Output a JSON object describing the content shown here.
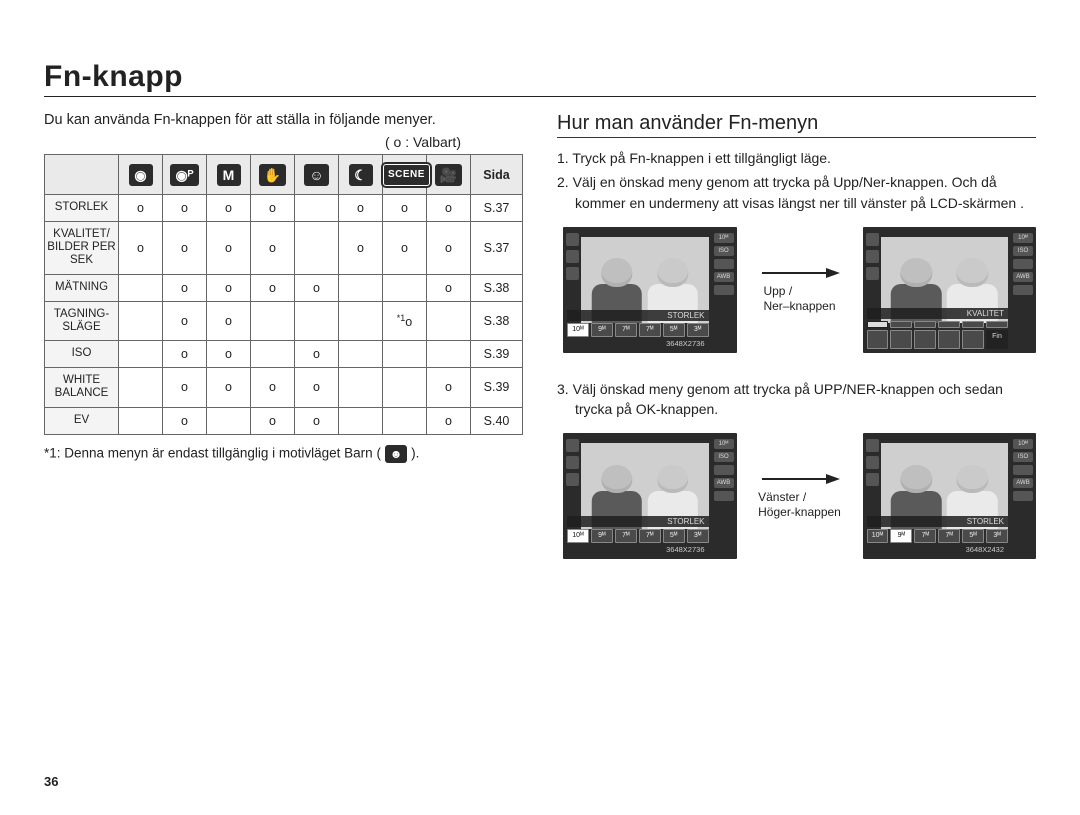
{
  "page_title": "Fn-knapp",
  "page_number": "36",
  "left": {
    "intro": "Du kan använda Fn-knappen för att ställa in följande menyer.",
    "valbart": "( o : Valbart)",
    "table": {
      "last_col_header": "Sida",
      "mode_icon_labels": [
        "camera-auto",
        "camera-p",
        "M",
        "hand-dis",
        "dual-face",
        "night",
        "SCENE",
        "video"
      ],
      "rows": [
        {
          "label": "STORLEK",
          "cells": [
            "o",
            "o",
            "o",
            "o",
            "",
            "o",
            "o",
            "o"
          ],
          "page": "S.37"
        },
        {
          "label": "KVALITET/\nBILDER PER\nSEK",
          "cells": [
            "o",
            "o",
            "o",
            "o",
            "",
            "o",
            "o",
            "o"
          ],
          "page": "S.37"
        },
        {
          "label": "MÄTNING",
          "cells": [
            "",
            "o",
            "o",
            "o",
            "o",
            "",
            "",
            "o"
          ],
          "page": "S.38"
        },
        {
          "label": "TAGNING-\nSLÄGE",
          "cells": [
            "",
            "o",
            "o",
            "",
            "",
            "",
            "*1o",
            ""
          ],
          "page": "S.38"
        },
        {
          "label": "ISO",
          "cells": [
            "",
            "o",
            "o",
            "",
            "o",
            "",
            "",
            ""
          ],
          "page": "S.39"
        },
        {
          "label": "WHITE\nBALANCE",
          "cells": [
            "",
            "o",
            "o",
            "o",
            "o",
            "",
            "",
            "o"
          ],
          "page": "S.39"
        },
        {
          "label": "EV",
          "cells": [
            "",
            "o",
            "",
            "o",
            "o",
            "",
            "",
            "o"
          ],
          "page": "S.40"
        }
      ]
    },
    "footnote_pre": "*1: Denna menyn är endast tillgänglig i motivläget Barn (",
    "footnote_post": ")."
  },
  "right": {
    "subheading": "Hur man använder Fn-menyn",
    "step1": "Tryck på Fn-knappen i ett tillgängligt läge.",
    "step2": "Välj en önskad meny genom att trycka på Upp/Ner-knappen. Och då kommer en undermeny att visas längst ner till vänster på LCD-skärmen .",
    "step3": "Välj önskad meny genom att trycka på UPP/NER-knappen och sedan trycka på OK-knappen.",
    "arrow1_caption": "Upp /\nNer–knappen",
    "arrow2_caption": "Vänster /\nHöger-knappen",
    "screens": {
      "size_label": "STORLEK",
      "quality_label": "KVALITET",
      "dims_a": "3648X2736",
      "dims_b": "3648X2432",
      "right_tags": [
        "10M",
        "ISO",
        "AUTO",
        "AWB",
        "✎"
      ]
    }
  },
  "colors": {
    "text": "#222222",
    "border": "#666666",
    "header_bg": "#eaeaea",
    "row_bg": "#f4f4f4",
    "lcd_bg": "#2b2b2b",
    "photo_bg": "#cfcfcf"
  }
}
